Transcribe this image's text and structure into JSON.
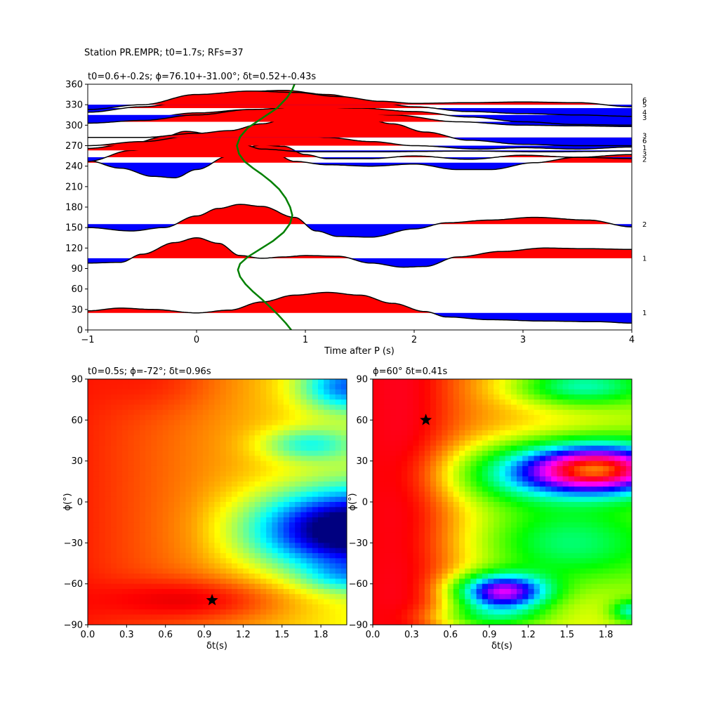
{
  "suptitle": "Station PR.EMPR; t0=1.7s; RFs=37",
  "chart_data": [
    {
      "type": "line",
      "title": "t0=0.6+-0.2s; ϕ=76.10+-31.00°; δt=0.52+-0.43s",
      "xlabel": "Time after P (s)",
      "ylabel": "",
      "xlim": [
        -1,
        4
      ],
      "ylim": [
        0,
        360
      ],
      "xticks": [
        "−1",
        "0",
        "1",
        "2",
        "3",
        "4"
      ],
      "yticks": [
        "0",
        "30",
        "60",
        "90",
        "120",
        "150",
        "180",
        "210",
        "240",
        "270",
        "300",
        "330",
        "360"
      ],
      "colors": {
        "positive": "#ff0000",
        "negative": "#0000ff",
        "trace": "#000000",
        "curve": "#008000"
      },
      "count_labels": [
        {
          "baz": 337,
          "label": "6"
        },
        {
          "baz": 330,
          "label": "5"
        },
        {
          "baz": 319,
          "label": "4"
        },
        {
          "baz": 311,
          "label": "3"
        },
        {
          "baz": 285,
          "label": "3"
        },
        {
          "baz": 277,
          "label": "6"
        },
        {
          "baz": 267,
          "label": "1"
        },
        {
          "baz": 258,
          "label": "3"
        },
        {
          "baz": 250,
          "label": "2"
        },
        {
          "baz": 155,
          "label": "2"
        },
        {
          "baz": 105,
          "label": "1"
        },
        {
          "baz": 25,
          "label": "1"
        }
      ],
      "traces": [
        {
          "baz": 25,
          "points": [
            [
              -1,
              3
            ],
            [
              -0.7,
              7
            ],
            [
              -0.4,
              5
            ],
            [
              0,
              0
            ],
            [
              0.3,
              4
            ],
            [
              0.6,
              16
            ],
            [
              0.9,
              26
            ],
            [
              1.2,
              30
            ],
            [
              1.5,
              26
            ],
            [
              1.8,
              14
            ],
            [
              2.1,
              2
            ],
            [
              2.3,
              -6
            ],
            [
              2.7,
              -10
            ],
            [
              3.2,
              -12
            ],
            [
              3.7,
              -13
            ],
            [
              4,
              -15
            ]
          ]
        },
        {
          "baz": 105,
          "points": [
            [
              -1,
              -7
            ],
            [
              -0.7,
              -6
            ],
            [
              -0.5,
              6
            ],
            [
              -0.2,
              23
            ],
            [
              0,
              30
            ],
            [
              0.2,
              22
            ],
            [
              0.4,
              4
            ],
            [
              0.6,
              0
            ],
            [
              0.8,
              2
            ],
            [
              1.0,
              4
            ],
            [
              1.3,
              3
            ],
            [
              1.6,
              -7
            ],
            [
              1.9,
              -13
            ],
            [
              2.1,
              -12
            ],
            [
              2.4,
              2
            ],
            [
              2.8,
              10
            ],
            [
              3.2,
              15
            ],
            [
              3.6,
              14
            ],
            [
              4,
              13
            ]
          ]
        },
        {
          "baz": 155,
          "points": [
            [
              -1,
              -5
            ],
            [
              -0.6,
              -10
            ],
            [
              -0.3,
              -5
            ],
            [
              0,
              12
            ],
            [
              0.2,
              23
            ],
            [
              0.4,
              29
            ],
            [
              0.6,
              26
            ],
            [
              0.9,
              10
            ],
            [
              1.1,
              -10
            ],
            [
              1.3,
              -18
            ],
            [
              1.6,
              -19
            ],
            [
              2,
              -7
            ],
            [
              2.3,
              2
            ],
            [
              2.7,
              6
            ],
            [
              3.1,
              10
            ],
            [
              3.6,
              6
            ],
            [
              4,
              -4
            ]
          ]
        },
        {
          "baz": 245,
          "points": [
            [
              -1,
              3
            ],
            [
              -0.7,
              -8
            ],
            [
              -0.4,
              -20
            ],
            [
              -0.2,
              -22
            ],
            [
              0,
              -10
            ],
            [
              0.3,
              10
            ],
            [
              0.5,
              16
            ],
            [
              0.7,
              15
            ],
            [
              0.9,
              2
            ],
            [
              1.2,
              -3
            ],
            [
              1.6,
              -5
            ],
            [
              2,
              -2
            ],
            [
              2.4,
              -10
            ],
            [
              2.7,
              -10
            ],
            [
              3.1,
              0
            ],
            [
              3.5,
              8
            ],
            [
              4,
              12
            ]
          ]
        },
        {
          "baz": 253,
          "points": [
            [
              -1,
              -6
            ],
            [
              -0.6,
              10
            ],
            [
              -0.2,
              25
            ],
            [
              0,
              30
            ],
            [
              0.2,
              22
            ],
            [
              0.4,
              12
            ],
            [
              0.6,
              18
            ],
            [
              0.8,
              16
            ],
            [
              1.0,
              4
            ],
            [
              1.2,
              -2
            ],
            [
              1.6,
              -2
            ],
            [
              2,
              2
            ],
            [
              2.5,
              -3
            ],
            [
              3,
              3
            ],
            [
              3.5,
              0
            ],
            [
              4,
              -2
            ]
          ]
        },
        {
          "baz": 263,
          "points": [
            [
              -1,
              3
            ],
            [
              -0.6,
              10
            ],
            [
              -0.3,
              20
            ],
            [
              -0.1,
              28
            ],
            [
              0.2,
              22
            ],
            [
              0.4,
              10
            ],
            [
              0.6,
              2
            ],
            [
              1.0,
              -2
            ],
            [
              1.6,
              -2
            ],
            [
              2.5,
              -1
            ],
            [
              3.2,
              -2
            ],
            [
              4,
              -1
            ]
          ]
        },
        {
          "baz": 270,
          "points": [
            [
              -1,
              0
            ],
            [
              -0.5,
              6
            ],
            [
              0,
              15
            ],
            [
              0.3,
              20
            ],
            [
              0.6,
              22
            ],
            [
              0.9,
              18
            ],
            [
              1.2,
              12
            ],
            [
              1.6,
              6
            ],
            [
              2,
              0
            ],
            [
              2.6,
              -5
            ],
            [
              3,
              -3
            ],
            [
              3.5,
              -5
            ],
            [
              4,
              -2
            ]
          ]
        },
        {
          "baz": 282,
          "points": [
            [
              -1,
              0
            ],
            [
              -0.5,
              0
            ],
            [
              0,
              6
            ],
            [
              0.3,
              10
            ],
            [
              0.6,
              20
            ],
            [
              0.9,
              32
            ],
            [
              1.2,
              34
            ],
            [
              1.5,
              30
            ],
            [
              1.8,
              20
            ],
            [
              2.1,
              8
            ],
            [
              2.5,
              -4
            ],
            [
              3,
              -10
            ],
            [
              3.5,
              -12
            ],
            [
              4,
              -12
            ]
          ]
        },
        {
          "baz": 305,
          "points": [
            [
              -1,
              -2
            ],
            [
              -0.5,
              5
            ],
            [
              0,
              13
            ],
            [
              0.5,
              18
            ],
            [
              1.0,
              20
            ],
            [
              1.3,
              16
            ],
            [
              1.8,
              10
            ],
            [
              2.4,
              0
            ],
            [
              3,
              -5
            ],
            [
              3.5,
              -6
            ],
            [
              4,
              -7
            ]
          ]
        },
        {
          "baz": 315,
          "points": [
            [
              -1,
              -12
            ],
            [
              -0.5,
              -8
            ],
            [
              0,
              0
            ],
            [
              0.5,
              8
            ],
            [
              1.0,
              12
            ],
            [
              1.5,
              10
            ],
            [
              2,
              5
            ],
            [
              2.5,
              -3
            ],
            [
              3,
              -10
            ],
            [
              3.5,
              -14
            ],
            [
              4,
              -15
            ]
          ]
        },
        {
          "baz": 325,
          "points": [
            [
              -1,
              -6
            ],
            [
              -0.5,
              2
            ],
            [
              0,
              12
            ],
            [
              0.4,
              24
            ],
            [
              0.8,
              26
            ],
            [
              1.2,
              20
            ],
            [
              1.6,
              10
            ],
            [
              2,
              2
            ],
            [
              2.5,
              -5
            ],
            [
              3,
              -8
            ],
            [
              3.5,
              -10
            ],
            [
              4,
              -12
            ]
          ]
        },
        {
          "baz": 330,
          "points": [
            [
              -1,
              -7
            ],
            [
              -0.5,
              0
            ],
            [
              0,
              15
            ],
            [
              0.5,
              20
            ],
            [
              0.9,
              18
            ],
            [
              1.3,
              12
            ],
            [
              1.7,
              5
            ],
            [
              2,
              2
            ],
            [
              2.5,
              3
            ],
            [
              3,
              4
            ],
            [
              3.5,
              3
            ],
            [
              4,
              -3
            ]
          ]
        }
      ],
      "green_curve": [
        [
          0.9,
          360
        ],
        [
          0.88,
          352
        ],
        [
          0.83,
          340
        ],
        [
          0.74,
          325
        ],
        [
          0.6,
          310
        ],
        [
          0.47,
          296
        ],
        [
          0.4,
          283
        ],
        [
          0.37,
          270
        ],
        [
          0.39,
          258
        ],
        [
          0.44,
          247
        ],
        [
          0.52,
          237
        ],
        [
          0.6,
          228
        ],
        [
          0.68,
          218
        ],
        [
          0.76,
          206
        ],
        [
          0.82,
          193
        ],
        [
          0.86,
          180
        ],
        [
          0.88,
          168
        ],
        [
          0.86,
          156
        ],
        [
          0.8,
          143
        ],
        [
          0.7,
          130
        ],
        [
          0.58,
          118
        ],
        [
          0.47,
          107
        ],
        [
          0.4,
          97
        ],
        [
          0.38,
          88
        ],
        [
          0.4,
          78
        ],
        [
          0.45,
          67
        ],
        [
          0.52,
          56
        ],
        [
          0.6,
          45
        ],
        [
          0.68,
          33
        ],
        [
          0.75,
          22
        ],
        [
          0.82,
          10
        ],
        [
          0.87,
          0
        ]
      ]
    },
    {
      "type": "heatmap",
      "title": "t0=0.5s; ϕ=-72°; δt=0.96s",
      "xlabel": "δt(s)",
      "ylabel": "ϕ(°)",
      "xlim": [
        0,
        2
      ],
      "ylim": [
        -90,
        90
      ],
      "xticks": [
        "0.0",
        "0.3",
        "0.6",
        "0.9",
        "1.2",
        "1.5",
        "1.8"
      ],
      "yticks": [
        "−90",
        "−60",
        "−30",
        "0",
        "30",
        "60",
        "90"
      ],
      "colormap": "jet_r",
      "best": {
        "dt": 0.96,
        "phi": -72
      }
    },
    {
      "type": "heatmap",
      "title": "ϕ=60° δt=0.41s",
      "xlabel": "δt(s)",
      "ylabel": "ϕ(°)",
      "xlim": [
        0,
        2
      ],
      "ylim": [
        -90,
        90
      ],
      "xticks": [
        "0.0",
        "0.3",
        "0.6",
        "0.9",
        "1.2",
        "1.5",
        "1.8"
      ],
      "yticks": [
        "−90",
        "−60",
        "−30",
        "0",
        "30",
        "60",
        "90"
      ],
      "colormap": "hsv",
      "best": {
        "dt": 0.41,
        "phi": 60
      }
    }
  ]
}
